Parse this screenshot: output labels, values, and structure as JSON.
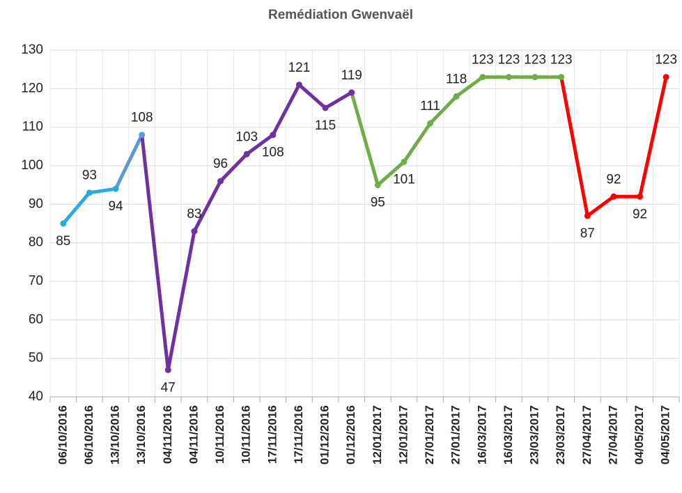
{
  "chart_data": {
    "type": "line",
    "title": "Remédiation Gwenvaël",
    "categories": [
      "06/10/2016",
      "06/10/2016",
      "13/10/2016",
      "13/10/2016",
      "04/11/2016",
      "04/11/2016",
      "10/11/2016",
      "10/11/2016",
      "17/11/2016",
      "17/11/2016",
      "01/12/2016",
      "01/12/2016",
      "12/01/2017",
      "12/01/2017",
      "27/01/2017",
      "27/01/2017",
      "16/03/2017",
      "16/03/2017",
      "23/03/2017",
      "23/03/2017",
      "27/04/2017",
      "27/04/2017",
      "04/05/2017",
      "04/05/2017"
    ],
    "values": [
      85,
      93,
      94,
      108,
      47,
      83,
      96,
      103,
      108,
      121,
      115,
      119,
      95,
      101,
      111,
      118,
      123,
      123,
      123,
      123,
      87,
      92,
      92,
      123
    ],
    "segment_colors": [
      "#29abe2",
      "#29abe2",
      "#5b9bd5",
      "#7030a0",
      "#7030a0",
      "#7030a0",
      "#7030a0",
      "#7030a0",
      "#7030a0",
      "#7030a0",
      "#7030a0",
      "#70ad47",
      "#70ad47",
      "#70ad47",
      "#70ad47",
      "#70ad47",
      "#70ad47",
      "#70ad47",
      "#70ad47",
      "#ff0000",
      "#ff0000",
      "#ff0000",
      "#ff0000"
    ],
    "ylim": [
      40,
      130
    ],
    "yticks": [
      40,
      50,
      60,
      70,
      80,
      90,
      100,
      110,
      120,
      130
    ],
    "grid": true
  }
}
